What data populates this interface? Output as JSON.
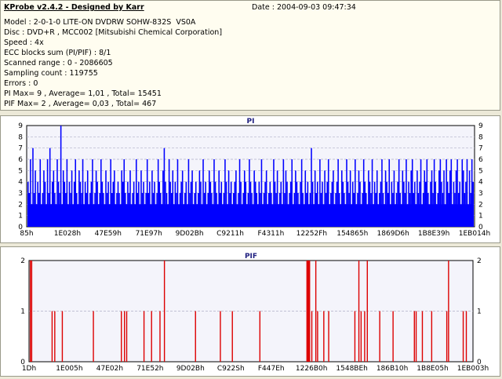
{
  "header": {
    "app_title": "KProbe v2.4.2 - Designed by Karr",
    "date": "Date : 2004-09-03 09:47:34",
    "lines": [
      "Model : 2-0-1-0 LITE-ON DVDRW SOHW-832S  VS0A",
      "Disc : DVD+R , MCC002 [Mitsubishi Chemical Corporation]",
      "Speed : 4x",
      "ECC blocks sum (PI/PIF) : 8/1",
      "Scanned range : 0 - 2086605",
      "Sampling count : 119755",
      "Errors : 0",
      "PI Max= 9 , Average= 1,01 , Total= 15451",
      "PIF Max= 2 , Average= 0,03 , Total= 467"
    ]
  },
  "colors": {
    "pi_bar": "#0000ff",
    "pif_bar": "#dd0000",
    "panel_bg": "#f4f4fb",
    "grid": "#b0b0c8"
  },
  "chart_data": [
    {
      "type": "bar",
      "title": "PI",
      "ylim": [
        0,
        9
      ],
      "yticks": [
        "0",
        "1",
        "2",
        "3",
        "4",
        "5",
        "6",
        "7",
        "8",
        "9"
      ],
      "x_tick_labels": [
        "85h",
        "1E028h",
        "47E59h",
        "71E97h",
        "9D02Bh",
        "C9211h",
        "F4311h",
        "12252Fh",
        "154865h",
        "1869D6h",
        "1B8E39h",
        "1EB014h"
      ],
      "grid": true,
      "baseline_level": 2,
      "values": [
        4,
        3,
        6,
        2,
        7,
        3,
        5,
        2,
        4,
        3,
        6,
        2,
        3,
        5,
        4,
        2,
        6,
        3,
        7,
        2,
        4,
        5,
        3,
        2,
        6,
        4,
        3,
        9,
        2,
        5,
        4,
        3,
        6,
        2,
        4,
        3,
        5,
        2,
        4,
        6,
        3,
        2,
        5,
        4,
        3,
        6,
        2,
        4,
        3,
        5,
        2,
        3,
        4,
        6,
        2,
        3,
        5,
        4,
        2,
        3,
        6,
        4,
        3,
        2,
        5,
        3,
        4,
        2,
        6,
        3,
        4,
        5,
        2,
        3,
        4,
        3,
        2,
        5,
        4,
        6,
        3,
        2,
        4,
        3,
        5,
        2,
        3,
        4,
        2,
        6,
        3,
        4,
        2,
        5,
        3,
        4,
        2,
        3,
        6,
        3,
        4,
        2,
        5,
        3,
        4,
        2,
        3,
        6,
        4,
        3,
        2,
        5,
        7,
        4,
        3,
        2,
        6,
        4,
        3,
        5,
        2,
        4,
        3,
        6,
        2,
        3,
        4,
        5,
        2,
        3,
        4,
        2,
        6,
        3,
        4,
        5,
        2,
        3,
        4,
        2,
        3,
        5,
        4,
        2,
        6,
        3,
        4,
        2,
        3,
        5,
        4,
        3,
        2,
        6,
        4,
        3,
        2,
        5,
        3,
        4,
        2,
        3,
        6,
        4,
        2,
        5,
        3,
        4,
        2,
        3,
        4,
        5,
        2,
        3,
        6,
        4,
        2,
        3,
        5,
        4,
        2,
        3,
        6,
        4,
        3,
        2,
        5,
        4,
        3,
        2,
        4,
        3,
        6,
        2,
        3,
        4,
        5,
        2,
        3,
        4,
        3,
        2,
        6,
        4,
        3,
        5,
        2,
        3,
        4,
        2,
        6,
        3,
        5,
        4,
        2,
        3,
        4,
        6,
        2,
        3,
        5,
        4,
        3,
        2,
        4,
        6,
        3,
        2,
        5,
        3,
        4,
        2,
        3,
        7,
        4,
        2,
        5,
        3,
        4,
        2,
        6,
        3,
        4,
        2,
        5,
        3,
        4,
        6,
        2,
        3,
        4,
        5,
        2,
        3,
        4,
        6,
        3,
        2,
        5,
        4,
        3,
        2,
        6,
        4,
        3,
        5,
        2,
        4,
        3,
        6,
        2,
        3,
        5,
        4,
        2,
        3,
        6,
        4,
        3,
        2,
        5,
        4,
        3,
        6,
        2,
        4,
        3,
        5,
        2,
        3,
        4,
        6,
        3,
        2,
        5,
        4,
        3,
        6,
        2,
        4,
        3,
        5,
        2,
        3,
        4,
        6,
        3,
        2,
        5,
        4,
        3,
        6,
        2,
        4,
        3,
        5,
        6,
        3,
        4,
        2,
        5,
        3,
        4,
        6,
        2,
        3,
        5,
        4,
        6,
        3,
        2,
        4,
        5,
        3,
        6,
        4,
        2,
        3,
        5,
        6,
        4,
        3,
        5,
        2,
        6,
        4,
        3,
        5,
        6,
        2,
        4,
        3,
        5,
        6,
        3,
        4,
        2,
        6,
        5,
        3,
        4,
        6,
        2,
        5,
        3,
        6,
        4
      ]
    },
    {
      "type": "bar",
      "title": "PIF",
      "ylim": [
        0,
        2
      ],
      "yticks": [
        "0",
        "1",
        "2"
      ],
      "x_tick_labels": [
        "1Dh",
        "1E005h",
        "47E02h",
        "71E52h",
        "9D02Bh",
        "C922Sh",
        "F447Eh",
        "1226B0h",
        "1548BEh",
        "186B10h",
        "1B8E05h",
        "1EB003h"
      ],
      "grid": true,
      "spikes": [
        {
          "x": 0.003,
          "v": 2
        },
        {
          "x": 0.006,
          "v": 2
        },
        {
          "x": 0.052,
          "v": 1
        },
        {
          "x": 0.058,
          "v": 1
        },
        {
          "x": 0.075,
          "v": 1
        },
        {
          "x": 0.145,
          "v": 1
        },
        {
          "x": 0.208,
          "v": 1
        },
        {
          "x": 0.215,
          "v": 1
        },
        {
          "x": 0.22,
          "v": 1
        },
        {
          "x": 0.259,
          "v": 1
        },
        {
          "x": 0.276,
          "v": 1
        },
        {
          "x": 0.295,
          "v": 1
        },
        {
          "x": 0.305,
          "v": 2
        },
        {
          "x": 0.375,
          "v": 1
        },
        {
          "x": 0.431,
          "v": 1
        },
        {
          "x": 0.458,
          "v": 1
        },
        {
          "x": 0.52,
          "v": 1
        },
        {
          "x": 0.626,
          "v": 2
        },
        {
          "x": 0.628,
          "v": 2
        },
        {
          "x": 0.63,
          "v": 2
        },
        {
          "x": 0.632,
          "v": 2
        },
        {
          "x": 0.637,
          "v": 1
        },
        {
          "x": 0.646,
          "v": 2
        },
        {
          "x": 0.65,
          "v": 1
        },
        {
          "x": 0.664,
          "v": 1
        },
        {
          "x": 0.675,
          "v": 1
        },
        {
          "x": 0.734,
          "v": 1
        },
        {
          "x": 0.743,
          "v": 2
        },
        {
          "x": 0.748,
          "v": 1
        },
        {
          "x": 0.756,
          "v": 1
        },
        {
          "x": 0.762,
          "v": 2
        },
        {
          "x": 0.79,
          "v": 1
        },
        {
          "x": 0.82,
          "v": 1
        },
        {
          "x": 0.868,
          "v": 1
        },
        {
          "x": 0.872,
          "v": 1
        },
        {
          "x": 0.886,
          "v": 1
        },
        {
          "x": 0.907,
          "v": 1
        },
        {
          "x": 0.941,
          "v": 1
        },
        {
          "x": 0.945,
          "v": 2
        },
        {
          "x": 0.978,
          "v": 1
        },
        {
          "x": 0.985,
          "v": 1
        }
      ]
    }
  ]
}
